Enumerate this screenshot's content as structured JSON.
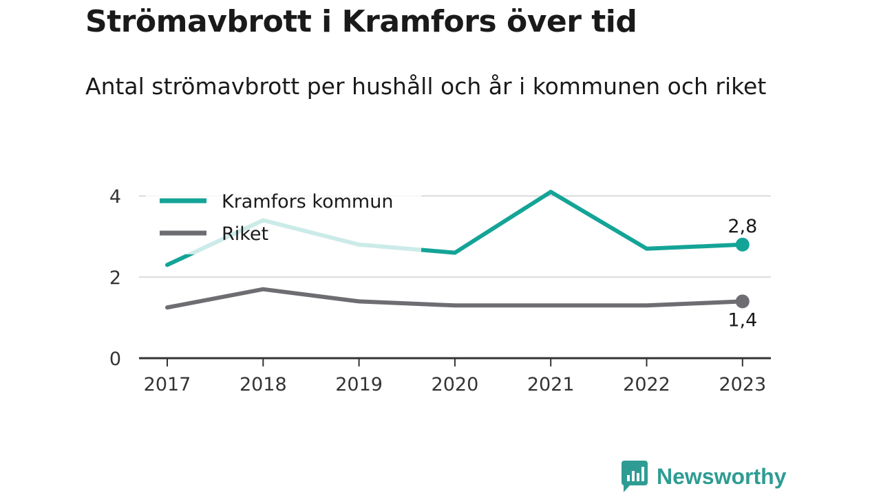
{
  "title": "Strömavbrott i Kramfors över tid",
  "subtitle": "Antal strömavbrott per hushåll och år i kommunen och riket",
  "brand": {
    "name": "Newsworthy"
  },
  "colors": {
    "kramfors": "#14a497",
    "riket": "#6d6d72",
    "grid": "#dcdcdc",
    "axis": "#333333"
  },
  "chart_data": {
    "type": "line",
    "title": "Strömavbrott i Kramfors över tid",
    "subtitle": "Antal strömavbrott per hushåll och år i kommunen och riket",
    "x": [
      "2017",
      "2018",
      "2019",
      "2020",
      "2021",
      "2022",
      "2023"
    ],
    "ylim": [
      0,
      5
    ],
    "yticks": [
      "0",
      "2",
      "4"
    ],
    "grid": true,
    "legend": "top-left",
    "series": [
      {
        "name": "Kramfors kommun",
        "color": "#14a497",
        "values": [
          2.3,
          3.4,
          2.8,
          2.6,
          4.1,
          2.7,
          2.8
        ],
        "end_label": "2,8"
      },
      {
        "name": "Riket",
        "color": "#6d6d72",
        "values": [
          1.25,
          1.7,
          1.4,
          1.3,
          1.3,
          1.3,
          1.4
        ],
        "end_label": "1,4"
      }
    ]
  }
}
